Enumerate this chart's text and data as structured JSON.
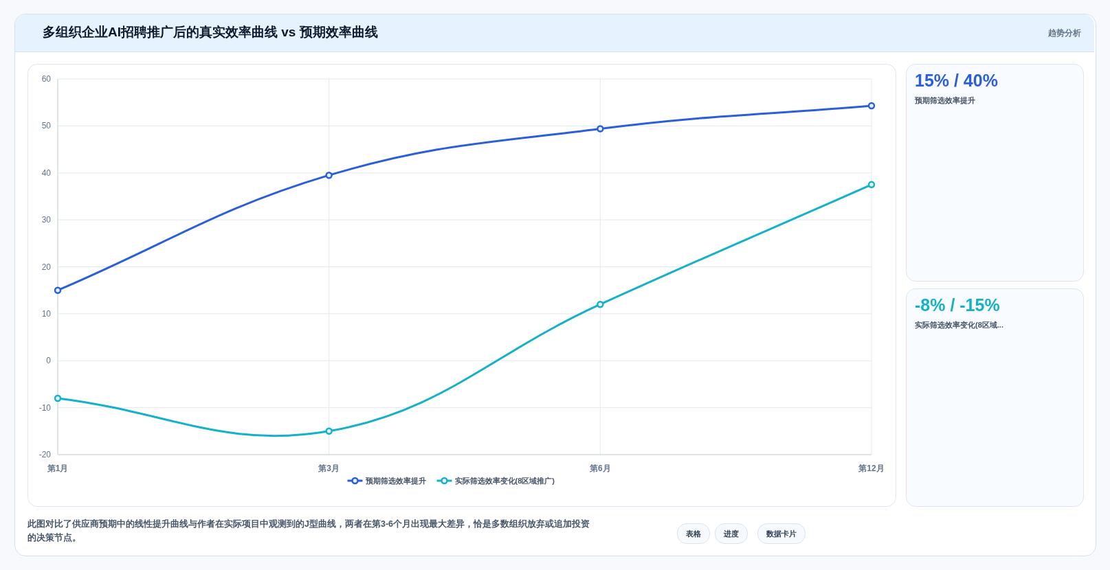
{
  "chart_data": {
    "type": "line",
    "title": "多组织企业AI招聘推广后的真实效率曲线 vs 预期效率曲线",
    "categories": [
      "第1月",
      "第3月",
      "第6月",
      "第12月"
    ],
    "series": [
      {
        "name": "预期筛选效率提升",
        "color": "#2b5fd9",
        "values": [
          15,
          39.5,
          49.4,
          54.3
        ]
      },
      {
        "name": "实际筛选效率变化(8区域推广)",
        "color": "#14b1c9",
        "values": [
          -8,
          -15,
          12,
          37.5
        ]
      }
    ],
    "ylim": [
      -20,
      60
    ],
    "yticks": [
      -20,
      -10,
      0,
      10,
      20,
      30,
      40,
      50,
      60
    ],
    "grid": true,
    "legend": "bottom",
    "marker": "circle",
    "annotations": [
      "趋势分析",
      "15% / 40%",
      "预期筛选效率提升",
      "-8% / -15%",
      "实际筛选效率变化(8区域...",
      "此图对比了供应商预期中的线性提升曲线与作者在实际项目中观测到的J型曲线，两者在第3-6个月出现最大差异，恰是多数组织放弃或追加投资的决策节点。",
      "表格",
      "进度",
      "数据卡片"
    ]
  }
}
